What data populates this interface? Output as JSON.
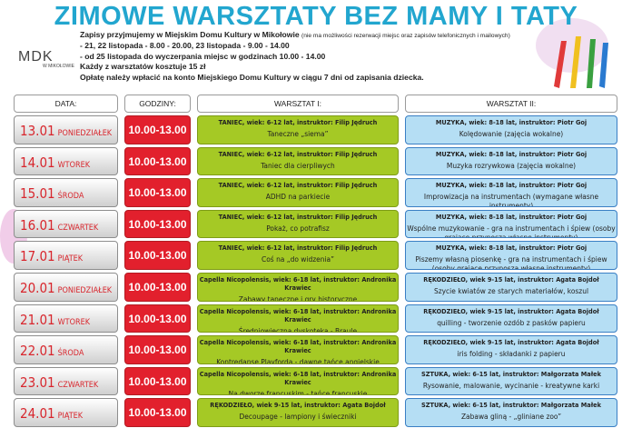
{
  "title": "ZIMOWE WARSZTATY BEZ MAMY I TATY",
  "logo": {
    "name": "MDK",
    "place": "W MIKOŁOWIE"
  },
  "info": [
    {
      "text": "Zapisy przyjmujemy w Miejskim Domu Kultury w Mikołowie",
      "note": "(nie ma możliwości rezerwacji miejsc oraz zapisów telefonicznych i mailowych)"
    },
    {
      "text": "- 21, 22 listopada - 8.00 - 20.00, 23 listopada - 9.00 - 14.00"
    },
    {
      "text": "- od 25 listopada do wyczerpania miejsc w godzinach 10.00 - 14.00"
    },
    {
      "text": "Każdy z warsztatów kosztuje 15 zł"
    },
    {
      "text": "Opłatę należy wpłacić na konto Miejskiego Domu Kultury w ciągu 7 dni od zapisania dziecka."
    }
  ],
  "table": {
    "headers": [
      "DATA:",
      "GODZINY:",
      "WARSZTAT I:",
      "WARSZTAT II:"
    ],
    "rows": [
      {
        "date": "13.01",
        "day": "PONIEDZIAŁEK",
        "hours": "10.00-13.00",
        "w1": {
          "head": "TANIEC, wiek: 6-12 lat, instruktor: Filip Jędruch",
          "title": "Taneczne „siema”"
        },
        "w2": {
          "head": "MUZYKA, wiek: 8-18 lat, instruktor: Piotr Goj",
          "title": "Kolędowanie (zajęcia wokalne)"
        }
      },
      {
        "date": "14.01",
        "day": "WTOREK",
        "hours": "10.00-13.00",
        "w1": {
          "head": "TANIEC, wiek: 6-12 lat, instruktor: Filip Jędruch",
          "title": "Taniec dla cierpliwych"
        },
        "w2": {
          "head": "MUZYKA, wiek: 8-18 lat, instruktor: Piotr Goj",
          "title": "Muzyka rozrywkowa (zajęcia wokalne)"
        }
      },
      {
        "date": "15.01",
        "day": "ŚRODA",
        "hours": "10.00-13.00",
        "w1": {
          "head": "TANIEC, wiek: 6-12 lat, instruktor: Filip Jędruch",
          "title": "ADHD na parkiecie"
        },
        "w2": {
          "head": "MUZYKA, wiek: 8-18 lat, instruktor: Piotr Goj",
          "title": "Improwizacja na instrumentach (wymagane własne instrumenty)"
        }
      },
      {
        "date": "16.01",
        "day": "CZWARTEK",
        "hours": "10.00-13.00",
        "w1": {
          "head": "TANIEC, wiek: 6-12 lat, instruktor: Filip Jędruch",
          "title": "Pokaż, co potrafisz"
        },
        "w2": {
          "head": "MUZYKA, wiek: 8-18 lat, instruktor: Piotr Goj",
          "title": "Wspólne muzykowanie - gra na instrumentach i śpiew (osoby grające przynoszą własne instrumenty)"
        }
      },
      {
        "date": "17.01",
        "day": "PIĄTEK",
        "hours": "10.00-13.00",
        "w1": {
          "head": "TANIEC, wiek: 6-12 lat, instruktor: Filip Jędruch",
          "title": "Coś na „do widzenia”"
        },
        "w2": {
          "head": "MUZYKA, wiek: 8-18 lat, instruktor: Piotr Goj",
          "title": "Piszemy własną piosenkę - gra na instrumentach i śpiew (osoby grające przynoszą własne instrumenty)"
        }
      },
      {
        "date": "20.01",
        "day": "PONIEDZIAŁEK",
        "hours": "10.00-13.00",
        "w1": {
          "head": "Capella Nicopolensis, wiek: 6-18 lat, instruktor: Andronika Krawiec",
          "title": "Zabawy taneczne i gry historyczne"
        },
        "w2": {
          "head": "RĘKODZIEŁO, wiek 9-15 lat, instruktor: Agata Bojdoł",
          "title": "Szycie kwiatów ze starych materiałów, koszul"
        }
      },
      {
        "date": "21.01",
        "day": "WTOREK",
        "hours": "10.00-13.00",
        "w1": {
          "head": "Capella Nicopolensis, wiek: 6-18 lat, instruktor: Andronika Krawiec",
          "title": "Średniowieczna dyskoteka - Braule"
        },
        "w2": {
          "head": "RĘKODZIEŁO, wiek 9-15 lat, instruktor: Agata Bojdoł",
          "title": "quilling - tworzenie ozdób z pasków papieru"
        }
      },
      {
        "date": "22.01",
        "day": "ŚRODA",
        "hours": "10.00-13.00",
        "w1": {
          "head": "Capella Nicopolensis, wiek: 6-18 lat, instruktor: Andronika Krawiec",
          "title": "Kontredanse Playforda - dawne tańce angielskie"
        },
        "w2": {
          "head": "RĘKODZIEŁO, wiek 9-15 lat, instruktor: Agata Bojdoł",
          "title": "iris folding - składanki z papieru"
        }
      },
      {
        "date": "23.01",
        "day": "CZWARTEK",
        "hours": "10.00-13.00",
        "w1": {
          "head": "Capella Nicopolensis, wiek: 6-18 lat, instruktor: Andronika Krawiec",
          "title": "Na dworze francuskim - tańce francuskie"
        },
        "w2": {
          "head": "SZTUKA, wiek: 6-15 lat, instruktor: Małgorzata Małek",
          "title": "Rysowanie, malowanie, wycinanie - kreatywne karki"
        }
      },
      {
        "date": "24.01",
        "day": "PIĄTEK",
        "hours": "10.00-13.00",
        "w1": {
          "head": "RĘKODZIEŁO, wiek 9-15 lat, instruktor: Agata Bojdoł",
          "title": "Decoupage - lampiony i świeczniki"
        },
        "w2": {
          "head": "SZTUKA, wiek: 6-15 lat, instruktor: Małgorzata Małek",
          "title": "Zabawa gliną - „gliniane zoo”"
        }
      }
    ]
  }
}
